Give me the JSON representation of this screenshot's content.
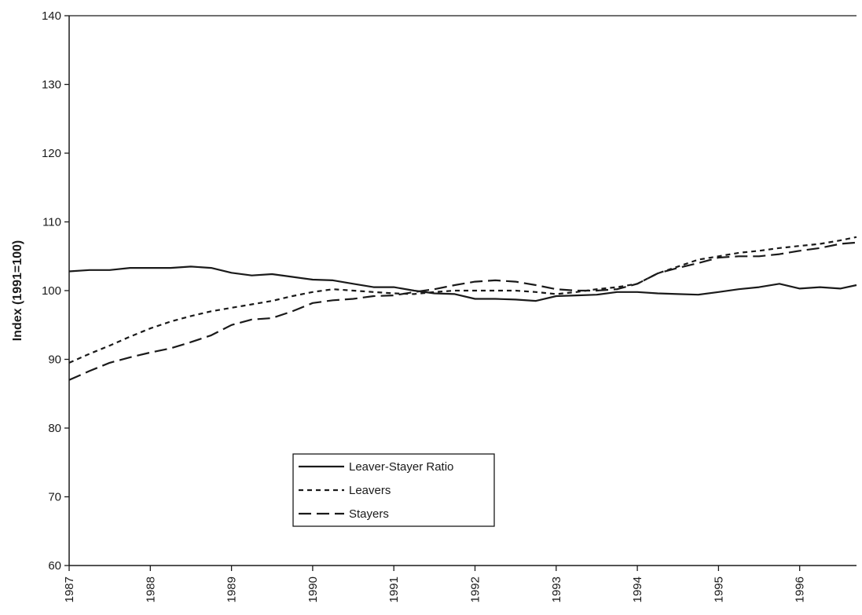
{
  "chart_data": {
    "type": "line",
    "title": "",
    "xlabel": "",
    "ylabel": "Index (1991=100)",
    "ylim": [
      60,
      140
    ],
    "xlim": [
      1987,
      1996.7
    ],
    "y_ticks": [
      60,
      70,
      80,
      90,
      100,
      110,
      120,
      130,
      140
    ],
    "x_ticks": [
      1987,
      1988,
      1989,
      1990,
      1991,
      1992,
      1993,
      1994,
      1995,
      1996
    ],
    "x_tick_labels": [
      "1987",
      "1988",
      "1989",
      "1990",
      "1991",
      "1992",
      "1993",
      "1994",
      "1995",
      "1996"
    ],
    "grid": false,
    "legend_position": "bottom-center",
    "series": [
      {
        "name": "Leaver-Stayer Ratio",
        "style": "solid",
        "color": "#1a1a1a",
        "x": [
          1987,
          1987.25,
          1987.5,
          1987.75,
          1988,
          1988.25,
          1988.5,
          1988.75,
          1989,
          1989.25,
          1989.5,
          1989.75,
          1990,
          1990.25,
          1990.5,
          1990.75,
          1991,
          1991.25,
          1991.5,
          1991.75,
          1992,
          1992.25,
          1992.5,
          1992.75,
          1993,
          1993.25,
          1993.5,
          1993.75,
          1994,
          1994.25,
          1994.5,
          1994.75,
          1995,
          1995.25,
          1995.5,
          1995.75,
          1996,
          1996.25,
          1996.5,
          1996.7
        ],
        "y": [
          102.8,
          103.0,
          103.0,
          103.3,
          103.3,
          103.3,
          103.5,
          103.3,
          102.6,
          102.2,
          102.4,
          102.0,
          101.6,
          101.5,
          101.0,
          100.5,
          100.5,
          100.0,
          99.6,
          99.5,
          98.8,
          98.8,
          98.7,
          98.5,
          99.2,
          99.3,
          99.4,
          99.8,
          99.8,
          99.6,
          99.5,
          99.4,
          99.8,
          100.2,
          100.5,
          101.0,
          100.3,
          100.5,
          100.3,
          100.8
        ]
      },
      {
        "name": "Leavers",
        "style": "dotted",
        "color": "#1a1a1a",
        "x": [
          1987,
          1987.25,
          1987.5,
          1987.75,
          1988,
          1988.25,
          1988.5,
          1988.75,
          1989,
          1989.25,
          1989.5,
          1989.75,
          1990,
          1990.25,
          1990.5,
          1990.75,
          1991,
          1991.25,
          1991.5,
          1991.75,
          1992,
          1992.25,
          1992.5,
          1992.75,
          1993,
          1993.25,
          1993.5,
          1993.75,
          1994,
          1994.25,
          1994.5,
          1994.75,
          1995,
          1995.25,
          1995.5,
          1995.75,
          1996,
          1996.25,
          1996.5,
          1996.7
        ],
        "y": [
          89.5,
          90.8,
          92.0,
          93.3,
          94.5,
          95.5,
          96.3,
          97.0,
          97.5,
          98.0,
          98.5,
          99.2,
          99.8,
          100.2,
          100.0,
          99.8,
          99.6,
          99.5,
          99.8,
          100.0,
          100.0,
          100.0,
          100.0,
          99.8,
          99.5,
          99.8,
          100.2,
          100.5,
          101.0,
          102.5,
          103.5,
          104.5,
          105.0,
          105.5,
          105.8,
          106.2,
          106.5,
          106.8,
          107.3,
          107.8
        ]
      },
      {
        "name": "Stayers",
        "style": "dashed",
        "color": "#1a1a1a",
        "x": [
          1987,
          1987.25,
          1987.5,
          1987.75,
          1988,
          1988.25,
          1988.5,
          1988.75,
          1989,
          1989.25,
          1989.5,
          1989.75,
          1990,
          1990.25,
          1990.5,
          1990.75,
          1991,
          1991.25,
          1991.5,
          1991.75,
          1992,
          1992.25,
          1992.5,
          1992.75,
          1993,
          1993.25,
          1993.5,
          1993.75,
          1994,
          1994.25,
          1994.5,
          1994.75,
          1995,
          1995.25,
          1995.5,
          1995.75,
          1996,
          1996.25,
          1996.5,
          1996.7
        ],
        "y": [
          87.0,
          88.3,
          89.5,
          90.3,
          91.0,
          91.6,
          92.5,
          93.5,
          95.0,
          95.8,
          96.0,
          97.0,
          98.2,
          98.6,
          98.8,
          99.2,
          99.3,
          99.8,
          100.2,
          100.8,
          101.3,
          101.5,
          101.3,
          100.8,
          100.2,
          100.0,
          100.0,
          100.2,
          101.0,
          102.5,
          103.3,
          104.0,
          104.8,
          105.0,
          105.0,
          105.3,
          105.8,
          106.2,
          106.8,
          107.0
        ]
      }
    ]
  }
}
